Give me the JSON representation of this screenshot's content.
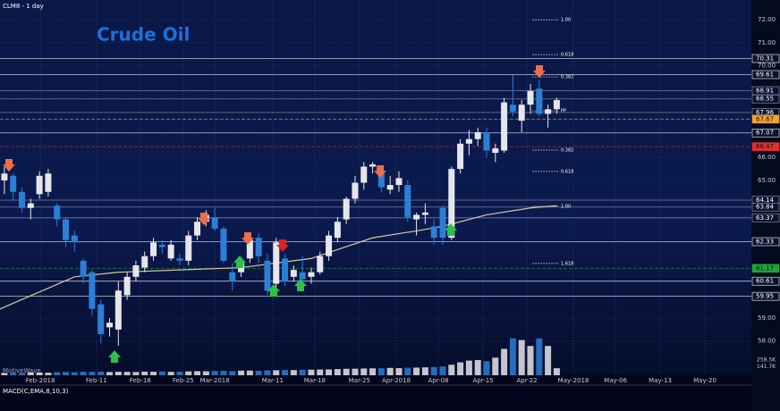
{
  "header": "CLM8 - 1 day",
  "watermark": "MotiveWave",
  "indicator_label": "MACD(C,EMA,8,10,3)",
  "chart_data": {
    "type": "candlestick",
    "title": "Crude Oil",
    "open": [
      65.0,
      65.2,
      64.5,
      63.8,
      64.4,
      64.5,
      63.9,
      63.3,
      62.6,
      61.5,
      61.0,
      59.6,
      58.6,
      58.5,
      60.0,
      60.8,
      61.2,
      61.7,
      62.2,
      61.6,
      61.6,
      61.5,
      62.6,
      63.2,
      63.4,
      62.9,
      61.0,
      61.0,
      61.6,
      62.5,
      61.5,
      60.5,
      61.6,
      60.8,
      61.0,
      60.8,
      61.0,
      61.7,
      62.5,
      63.3,
      64.2,
      64.9,
      65.6,
      65.4,
      64.6,
      64.8,
      64.8,
      63.3,
      63.5,
      63.0,
      63.8,
      62.5,
      65.5,
      66.6,
      66.8,
      67.1,
      66.2,
      66.3,
      68.3,
      67.6,
      68.3,
      69.0,
      67.9,
      68.1
    ],
    "high": [
      65.6,
      65.3,
      64.7,
      64.2,
      65.4,
      65.5,
      64.0,
      63.4,
      62.8,
      61.6,
      61.1,
      59.8,
      59.0,
      60.6,
      61.0,
      61.5,
      61.9,
      62.5,
      62.4,
      62.4,
      61.8,
      62.8,
      63.4,
      63.7,
      63.8,
      63.0,
      61.4,
      61.6,
      62.6,
      62.7,
      61.8,
      62.5,
      61.8,
      61.3,
      61.7,
      61.2,
      61.9,
      62.8,
      63.4,
      64.3,
      65.2,
      65.8,
      65.8,
      65.5,
      65.2,
      65.4,
      65.0,
      63.6,
      64.0,
      63.3,
      63.9,
      65.6,
      66.8,
      67.2,
      67.3,
      67.3,
      66.6,
      68.6,
      69.6,
      68.5,
      69.2,
      69.4,
      68.3,
      68.6
    ],
    "low": [
      64.4,
      64.1,
      63.6,
      63.3,
      64.2,
      64.3,
      63.0,
      62.1,
      61.9,
      60.5,
      59.1,
      57.9,
      58.2,
      57.8,
      59.8,
      60.6,
      61.0,
      61.5,
      61.8,
      61.5,
      61.3,
      61.3,
      62.4,
      63.0,
      62.8,
      61.4,
      60.2,
      60.8,
      61.4,
      61.4,
      60.0,
      60.3,
      60.4,
      60.6,
      60.5,
      60.5,
      60.9,
      61.5,
      62.3,
      63.1,
      64.0,
      64.6,
      65.3,
      64.5,
      64.4,
      64.5,
      63.2,
      62.6,
      63.1,
      62.2,
      62.2,
      62.4,
      65.3,
      66.1,
      66.5,
      66.0,
      65.8,
      66.2,
      67.8,
      67.1,
      67.9,
      67.8,
      67.3,
      67.9
    ],
    "close": [
      65.3,
      64.5,
      63.8,
      64.0,
      65.2,
      65.3,
      63.3,
      62.4,
      62.3,
      60.8,
      59.4,
      58.3,
      58.8,
      60.2,
      60.8,
      61.3,
      61.7,
      62.3,
      62.1,
      62.2,
      61.5,
      62.6,
      63.2,
      63.5,
      62.9,
      61.5,
      60.6,
      61.4,
      62.4,
      61.7,
      60.2,
      62.3,
      60.6,
      61.1,
      60.7,
      61.0,
      61.7,
      62.6,
      63.2,
      64.2,
      64.9,
      65.6,
      65.7,
      64.7,
      64.8,
      65.1,
      63.4,
      63.5,
      63.6,
      62.5,
      62.5,
      65.5,
      66.6,
      66.8,
      67.1,
      66.3,
      66.4,
      68.4,
      68.0,
      68.3,
      68.9,
      67.9,
      68.1,
      68.5
    ],
    "up_color": "#e6e6ea",
    "down_color": "#2b7fd6",
    "xlim": [
      -0.5,
      85.2
    ],
    "xticks": [
      {
        "value": 4.1,
        "label": "Feb-2018"
      },
      {
        "value": 10.5,
        "label": "Feb-11"
      },
      {
        "value": 15.5,
        "label": "Feb-18"
      },
      {
        "value": 20.4,
        "label": "Feb-25"
      },
      {
        "value": 24,
        "label": "Mar-2018"
      },
      {
        "value": 30.6,
        "label": "Mar-11"
      },
      {
        "value": 35.4,
        "label": "Mar-18"
      },
      {
        "value": 40.5,
        "label": "Mar-25"
      },
      {
        "value": 44.7,
        "label": "Apr-2018"
      },
      {
        "value": 49.5,
        "label": "Apr-08"
      },
      {
        "value": 54.6,
        "label": "Apr-15"
      },
      {
        "value": 59.6,
        "label": "Apr-22"
      },
      {
        "value": 64.9,
        "label": "May-2018"
      },
      {
        "value": 69.7,
        "label": "May-06"
      },
      {
        "value": 74.8,
        "label": "May-13"
      },
      {
        "value": 79.9,
        "label": "May-20"
      }
    ],
    "ylim": [
      56.9,
      72.86
    ],
    "yticks": [
      {
        "value": 72,
        "label": "72.00"
      },
      {
        "value": 71,
        "label": "71.00"
      },
      {
        "value": 70,
        "label": "70.00"
      },
      {
        "value": 66,
        "label": "66.00"
      },
      {
        "value": 65,
        "label": "65.00"
      },
      {
        "value": 59,
        "label": "59.00"
      },
      {
        "value": 58,
        "label": "58.00"
      }
    ],
    "grid": true,
    "levels": [
      {
        "value": 70.31,
        "color": "#ffffff"
      },
      {
        "value": 69.61,
        "color": "#ffffff"
      },
      {
        "value": 68.91,
        "color": "#9aa0b8"
      },
      {
        "value": 68.55,
        "color": "#9aa0b8"
      },
      {
        "value": 67.96,
        "color": "#9aa0b8"
      },
      {
        "value": 67.67,
        "color": "#f0a030"
      },
      {
        "value": 67.07,
        "color": "#ffffff"
      },
      {
        "value": 66.47,
        "color": "#e03030"
      },
      {
        "value": 64.14,
        "color": "#9aa0b8"
      },
      {
        "value": 63.84,
        "color": "#9aa0b8"
      },
      {
        "value": 63.37,
        "color": "#9aa0b8"
      },
      {
        "value": 62.33,
        "color": "#ffffff"
      },
      {
        "value": 61.17,
        "color": "#1fa33a"
      },
      {
        "value": 60.61,
        "color": "#ffffff"
      },
      {
        "value": 59.95,
        "color": "#ffffff"
      }
    ],
    "fib_levels": [
      {
        "label": "1.00",
        "value": 72.0
      },
      {
        "label": "0.618",
        "value": 70.48
      },
      {
        "label": "0.382",
        "value": 69.51
      },
      {
        "label": "PP",
        "value": 68.03
      },
      {
        "label": "0.382",
        "value": 66.32
      },
      {
        "label": "0.618",
        "value": 65.39
      },
      {
        "label": "1.00",
        "value": 63.87
      },
      {
        "label": "1.618",
        "value": 61.38
      }
    ],
    "moving_average": {
      "color": "#d8c8a0",
      "x": [
        -0.5,
        8,
        13,
        20,
        27,
        35,
        42,
        47,
        50,
        55,
        60,
        63
      ],
      "values": [
        59.4,
        60.8,
        61.0,
        61.1,
        61.2,
        61.6,
        62.5,
        62.8,
        63.0,
        63.5,
        63.8,
        63.9
      ]
    },
    "volume": {
      "values": [
        40,
        45,
        42,
        50,
        48,
        44,
        52,
        55,
        50,
        60,
        58,
        62,
        55,
        60,
        58,
        56,
        62,
        60,
        64,
        58,
        62,
        66,
        70,
        68,
        72,
        75,
        70,
        78,
        80,
        76,
        82,
        85,
        90,
        88,
        92,
        95,
        98,
        100,
        105,
        110,
        112,
        115,
        118,
        120,
        125,
        122,
        128,
        130,
        135,
        140,
        150,
        180,
        220,
        250,
        260,
        240,
        300,
        450,
        630,
        600,
        500,
        630,
        500,
        120
      ],
      "ylim": [
        0,
        640
      ],
      "ticks": [
        {
          "value": 258.5,
          "label": "258.5K"
        },
        {
          "value": 141.7,
          "label": "141.7K"
        }
      ]
    }
  }
}
